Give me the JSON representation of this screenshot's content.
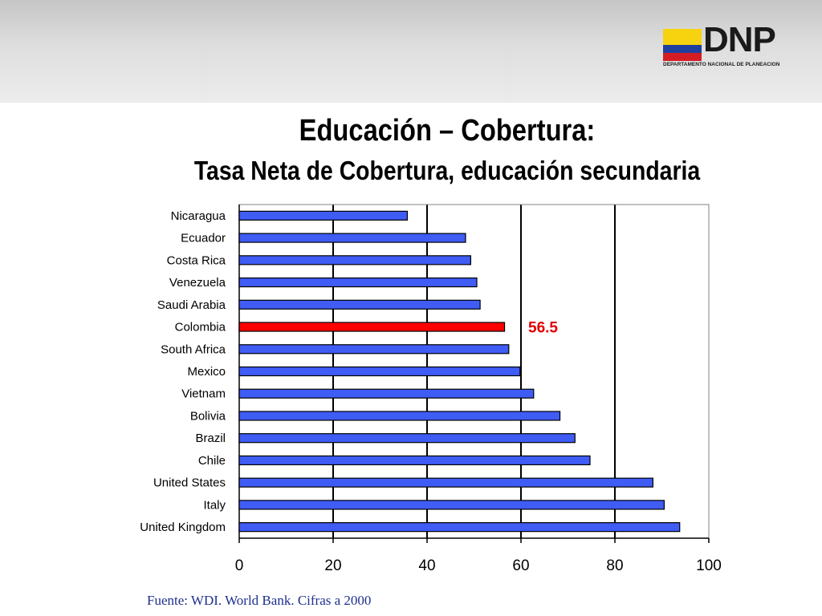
{
  "logo": {
    "text": "DNP",
    "subtitle": "DEPARTAMENTO NACIONAL DE PLANEACION",
    "flag_colors": [
      "#f6d20f",
      "#1f3f9f",
      "#d51c24"
    ]
  },
  "title": {
    "line1": "Educación – Cobertura:",
    "line2": "Tasa Neta de Cobertura, educación secundaria"
  },
  "source": "Fuente: WDI. World Bank. Cifras a 2000",
  "colors": {
    "bar": "#3f5cf5",
    "highlight": "#ff0000",
    "highlight_label": "#e00000"
  },
  "chart_data": {
    "type": "bar",
    "orientation": "horizontal",
    "categories": [
      "Nicaragua",
      "Ecuador",
      "Costa Rica",
      "Venezuela",
      "Saudi Arabia",
      "Colombia",
      "South Africa",
      "Mexico",
      "Vietnam",
      "Bolivia",
      "Brazil",
      "Chile",
      "United States",
      "Italy",
      "United Kingdom"
    ],
    "values": [
      35.8,
      48.2,
      49.3,
      50.6,
      51.3,
      56.5,
      57.4,
      59.8,
      62.7,
      68.3,
      71.5,
      74.7,
      88.1,
      90.5,
      93.8
    ],
    "highlight": "Colombia",
    "annotations": [
      {
        "category": "Colombia",
        "text": "56.5"
      }
    ],
    "xlim": [
      0,
      100
    ],
    "xticks": [
      0,
      20,
      40,
      60,
      80,
      100
    ],
    "grid": "vertical"
  }
}
